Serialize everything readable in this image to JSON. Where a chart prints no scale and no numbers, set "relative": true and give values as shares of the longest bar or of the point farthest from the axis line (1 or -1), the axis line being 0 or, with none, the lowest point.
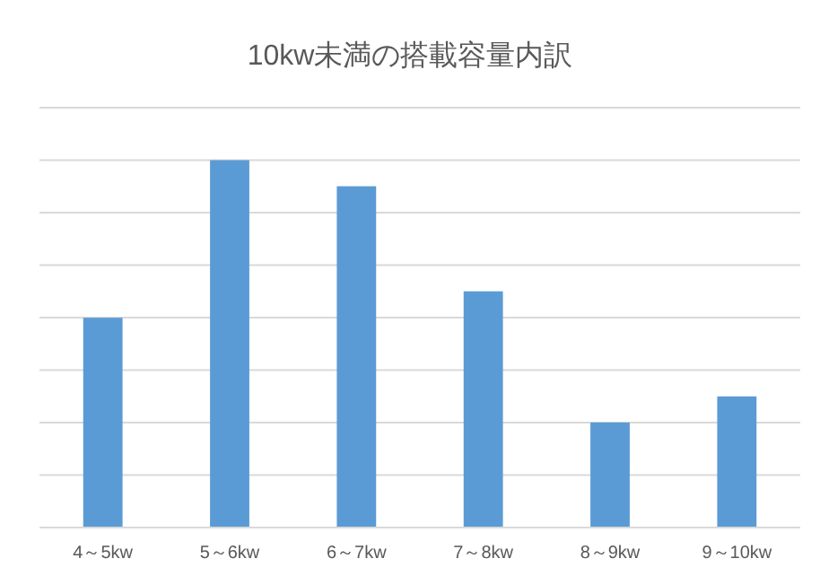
{
  "chart_data": {
    "type": "bar",
    "title": "10kw未満の搭載容量内訳",
    "categories": [
      "4～5kw",
      "5～6kw",
      "6～7kw",
      "7～8kw",
      "8～9kw",
      "9～10kw"
    ],
    "values": [
      0.571,
      1,
      0.929,
      0.643,
      0.286,
      0.357
    ],
    "color": "#5b9bd5",
    "relative": true,
    "grid": "y"
  }
}
